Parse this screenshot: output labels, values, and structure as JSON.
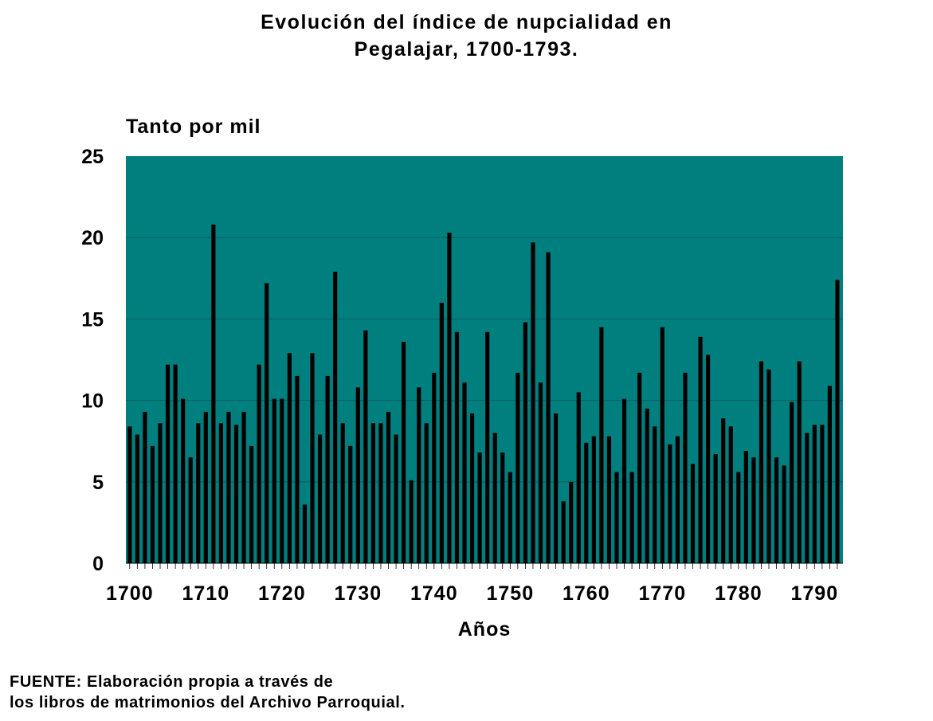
{
  "title_line1": "Evolución del índice de nupcialidad en",
  "title_line2": "Pegalajar, 1700-1793.",
  "source_line1": "FUENTE: Elaboración propia a través de",
  "source_line2": "los libros de matrimonios del Archivo Parroquial.",
  "colors": {
    "plot_background": "#007f7f",
    "bars": "#000000",
    "gridlines": "#0a5f5f"
  },
  "chart_data": {
    "type": "bar",
    "title": "Evolución del índice de nupcialidad en Pegalajar, 1700-1793.",
    "ylabel": "Tanto por mil",
    "xlabel": "Años",
    "ylim": [
      0,
      25
    ],
    "yticks": [
      0,
      5,
      10,
      15,
      20,
      25
    ],
    "xticks": [
      1700,
      1710,
      1720,
      1730,
      1740,
      1750,
      1760,
      1770,
      1780,
      1790
    ],
    "grid": true,
    "legend": "none",
    "x": [
      1700,
      1701,
      1702,
      1703,
      1704,
      1705,
      1706,
      1707,
      1708,
      1709,
      1710,
      1711,
      1712,
      1713,
      1714,
      1715,
      1716,
      1717,
      1718,
      1719,
      1720,
      1721,
      1722,
      1723,
      1724,
      1725,
      1726,
      1727,
      1728,
      1729,
      1730,
      1731,
      1732,
      1733,
      1734,
      1735,
      1736,
      1737,
      1738,
      1739,
      1740,
      1741,
      1742,
      1743,
      1744,
      1745,
      1746,
      1747,
      1748,
      1749,
      1750,
      1751,
      1752,
      1753,
      1754,
      1755,
      1756,
      1757,
      1758,
      1759,
      1760,
      1761,
      1762,
      1763,
      1764,
      1765,
      1766,
      1767,
      1768,
      1769,
      1770,
      1771,
      1772,
      1773,
      1774,
      1775,
      1776,
      1777,
      1778,
      1779,
      1780,
      1781,
      1782,
      1783,
      1784,
      1785,
      1786,
      1787,
      1788,
      1789,
      1790,
      1791,
      1792,
      1793
    ],
    "values": [
      8.4,
      7.9,
      9.3,
      7.2,
      8.6,
      12.2,
      12.2,
      10.1,
      6.5,
      8.6,
      9.3,
      20.8,
      8.6,
      9.3,
      8.5,
      9.3,
      7.2,
      12.2,
      17.2,
      10.1,
      10.1,
      12.9,
      11.5,
      3.6,
      12.9,
      7.9,
      11.5,
      17.9,
      8.6,
      7.2,
      10.8,
      14.3,
      8.6,
      8.6,
      9.3,
      7.9,
      13.6,
      5.1,
      10.8,
      8.6,
      11.7,
      16.0,
      20.3,
      14.2,
      11.1,
      9.2,
      6.8,
      14.2,
      8.0,
      6.8,
      5.6,
      11.7,
      14.8,
      19.7,
      11.1,
      19.1,
      9.2,
      3.8,
      5.0,
      10.5,
      7.4,
      7.8,
      14.5,
      7.8,
      5.6,
      10.1,
      5.6,
      11.7,
      9.5,
      8.4,
      14.5,
      7.3,
      7.8,
      11.7,
      6.1,
      13.9,
      12.8,
      6.7,
      8.9,
      8.4,
      5.6,
      6.9,
      6.5,
      12.4,
      11.9,
      6.5,
      6.0,
      9.9,
      12.4,
      8.0,
      8.5,
      8.5,
      10.9,
      17.4
    ]
  }
}
